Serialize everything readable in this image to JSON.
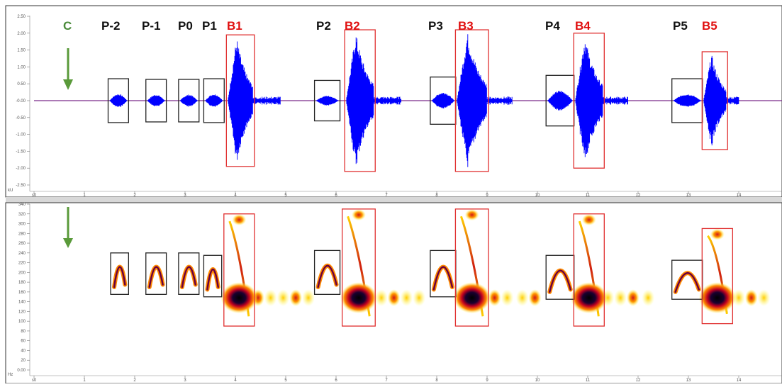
{
  "colors": {
    "waveform": "#0000ff",
    "baseline": "#7b2a8a",
    "arrow": "#5a9a3a",
    "label_c": "#4a8a3a",
    "label_p": "#111111",
    "label_b": "#e01010",
    "box_p": "#222222",
    "box_b": "#e03030",
    "divider": "#d8d8d8"
  },
  "top_panel": {
    "unit": "kU",
    "y_ticks": [
      "2.50",
      "2.00",
      "1.50",
      "1.00",
      "0.50",
      "-0.00",
      "-0.50",
      "-1.00",
      "-1.50",
      "-2.00",
      "-2.50"
    ],
    "x_ticks": [
      "s0",
      "1",
      "2",
      "3",
      "4",
      "5",
      "6",
      "7",
      "8",
      "9",
      "10",
      "11",
      "12",
      "13",
      "14"
    ]
  },
  "bottom_panel": {
    "unit": "Hz",
    "y_ticks": [
      "340",
      "320",
      "300",
      "280",
      "260",
      "240",
      "220",
      "200",
      "180",
      "160",
      "140",
      "120",
      "100",
      "80",
      "60",
      "40",
      "20",
      "0.00"
    ],
    "x_ticks": [
      "s0",
      "1",
      "2",
      "3",
      "4",
      "5",
      "6",
      "7",
      "8",
      "9",
      "10",
      "11",
      "12",
      "13",
      "14"
    ]
  },
  "labels": {
    "c": "C",
    "p": [
      "P-2",
      "P-1",
      "P0",
      "P1",
      "P2",
      "P3",
      "P4",
      "P5"
    ],
    "b": [
      "B1",
      "B2",
      "B3",
      "B4",
      "B5"
    ]
  },
  "chart_data": [
    {
      "type": "line",
      "ylabel": "kU",
      "xlim": [
        0,
        15
      ],
      "ylim": [
        -2.5,
        2.5
      ],
      "series": [
        {
          "values_note": "",
          "events": [
            {
              "label": "P-2",
              "t_start": 1.5,
              "t_end": 1.85,
              "peak_amplitude": 0.2
            },
            {
              "label": "P-1",
              "t_start": 2.25,
              "t_end": 2.6,
              "peak_amplitude": 0.18
            },
            {
              "label": "P0",
              "t_start": 2.9,
              "t_end": 3.25,
              "peak_amplitude": 0.18
            },
            {
              "label": "P1",
              "t_start": 3.4,
              "t_end": 3.75,
              "peak_amplitude": 0.2
            },
            {
              "label": "B1",
              "t_start": 3.85,
              "t_end": 4.35,
              "peak_amplitude": 1.9
            },
            {
              "label": "P2",
              "t_start": 5.6,
              "t_end": 6.05,
              "peak_amplitude": 0.15
            },
            {
              "label": "B2",
              "t_start": 6.2,
              "t_end": 6.75,
              "peak_amplitude": 2.05
            },
            {
              "label": "P3",
              "t_start": 7.9,
              "t_end": 8.35,
              "peak_amplitude": 0.25
            },
            {
              "label": "B3",
              "t_start": 8.4,
              "t_end": 9.0,
              "peak_amplitude": 2.05
            },
            {
              "label": "P4",
              "t_start": 10.2,
              "t_end": 10.7,
              "peak_amplitude": 0.3
            },
            {
              "label": "B4",
              "t_start": 10.75,
              "t_end": 11.3,
              "peak_amplitude": 1.95
            },
            {
              "label": "P5",
              "t_start": 12.7,
              "t_end": 13.25,
              "peak_amplitude": 0.2
            },
            {
              "label": "B5",
              "t_start": 13.3,
              "t_end": 13.75,
              "peak_amplitude": 1.4
            }
          ]
        }
      ]
    },
    {
      "type": "heatmap",
      "ylabel": "Hz",
      "xlim": [
        0,
        15
      ],
      "ylim": [
        0,
        340
      ],
      "events": [
        {
          "label": "P-2",
          "t_start": 1.55,
          "t_end": 1.85,
          "f_low": 155,
          "f_high": 240
        },
        {
          "label": "P-1",
          "t_start": 2.25,
          "t_end": 2.6,
          "f_low": 155,
          "f_high": 240
        },
        {
          "label": "P0",
          "t_start": 2.9,
          "t_end": 3.25,
          "f_low": 155,
          "f_high": 240
        },
        {
          "label": "P1",
          "t_start": 3.4,
          "t_end": 3.7,
          "f_low": 150,
          "f_high": 235
        },
        {
          "label": "B1",
          "t_start": 3.8,
          "t_end": 4.35,
          "f_low": 90,
          "f_high": 320
        },
        {
          "label": "P2",
          "t_start": 5.6,
          "t_end": 6.05,
          "f_low": 155,
          "f_high": 245
        },
        {
          "label": "B2",
          "t_start": 6.15,
          "t_end": 6.75,
          "f_low": 90,
          "f_high": 330
        },
        {
          "label": "P3",
          "t_start": 7.9,
          "t_end": 8.35,
          "f_low": 150,
          "f_high": 245
        },
        {
          "label": "B3",
          "t_start": 8.4,
          "t_end": 9.0,
          "f_low": 90,
          "f_high": 330
        },
        {
          "label": "P4",
          "t_start": 10.2,
          "t_end": 10.7,
          "f_low": 145,
          "f_high": 235
        },
        {
          "label": "B4",
          "t_start": 10.75,
          "t_end": 11.3,
          "f_low": 90,
          "f_high": 320
        },
        {
          "label": "P5",
          "t_start": 12.7,
          "t_end": 13.25,
          "f_low": 145,
          "f_high": 225
        },
        {
          "label": "B5",
          "t_start": 13.3,
          "t_end": 13.85,
          "f_low": 95,
          "f_high": 290
        }
      ]
    }
  ]
}
